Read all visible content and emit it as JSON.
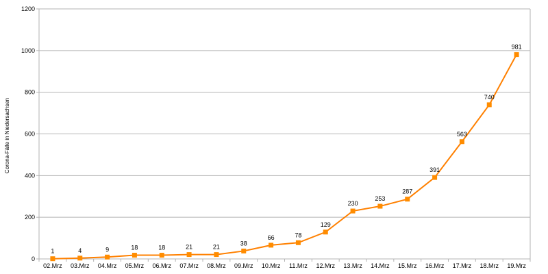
{
  "chart_data": {
    "type": "line",
    "title": "",
    "xlabel": "",
    "ylabel": "Corona-Fälle in Niedersachsen",
    "categories": [
      "02.Mrz",
      "03.Mrz",
      "04.Mrz",
      "05.Mrz",
      "06.Mrz",
      "07.Mrz",
      "08.Mrz",
      "09.Mrz",
      "10.Mrz",
      "11.Mrz",
      "12.Mrz",
      "13.Mrz",
      "14.Mrz",
      "15.Mrz",
      "16.Mrz",
      "17.Mrz",
      "18.Mrz",
      "19.Mrz"
    ],
    "series": [
      {
        "values": [
          1,
          4,
          9,
          18,
          18,
          21,
          21,
          38,
          66,
          78,
          129,
          230,
          253,
          287,
          391,
          563,
          740,
          981
        ]
      }
    ],
    "ylim": [
      0,
      1200
    ],
    "yticks": [
      0,
      200,
      400,
      600,
      800,
      1000,
      1200
    ],
    "grid": true,
    "legend": "none",
    "data_labels": true,
    "colors": {
      "line": "#ff8000",
      "marker": "#ff8c00",
      "grid": "#b3b3b3",
      "axis": "#b3b3b3"
    }
  }
}
